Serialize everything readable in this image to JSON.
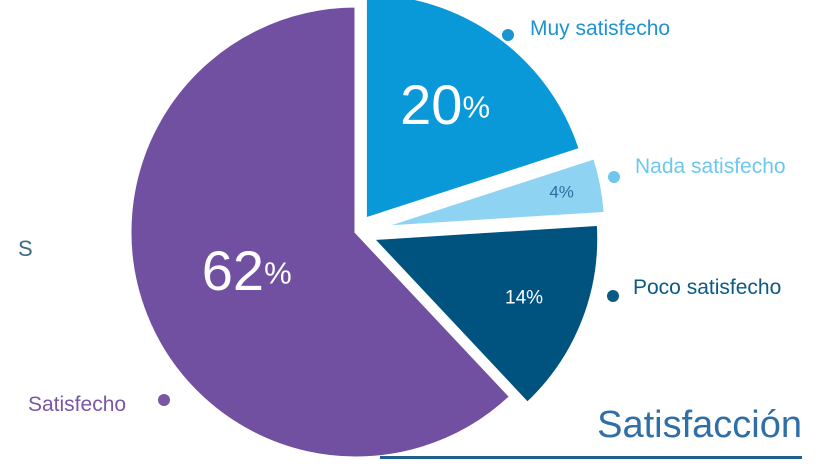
{
  "chart_data": {
    "type": "pie",
    "title": "Satisfacción",
    "slices": [
      {
        "label": "Muy satisfecho",
        "value": 20,
        "value_text": "20",
        "color": "#0a99d8",
        "legend_color": "#1d93cf",
        "value_color": "#ffffff"
      },
      {
        "label": "Nada satisfecho",
        "value": 4,
        "value_text": "4%",
        "color": "#8fd3f3",
        "legend_color": "#6ec8ee",
        "value_color": "#2a6fa0"
      },
      {
        "label": "Poco satisfecho",
        "value": 14,
        "value_text": "14%",
        "color": "#00527f",
        "legend_color": "#0b5a86",
        "value_color": "#ffffff"
      },
      {
        "label": "Satisfecho",
        "value": 62,
        "value_text": "62",
        "color": "#7150a2",
        "legend_color": "#7a56a4",
        "value_color": "#ffffff"
      }
    ],
    "legend_position": "around"
  },
  "stray_label": "S",
  "colors": {
    "title": "#2f6fa6",
    "accent": "#1f5f8b"
  }
}
